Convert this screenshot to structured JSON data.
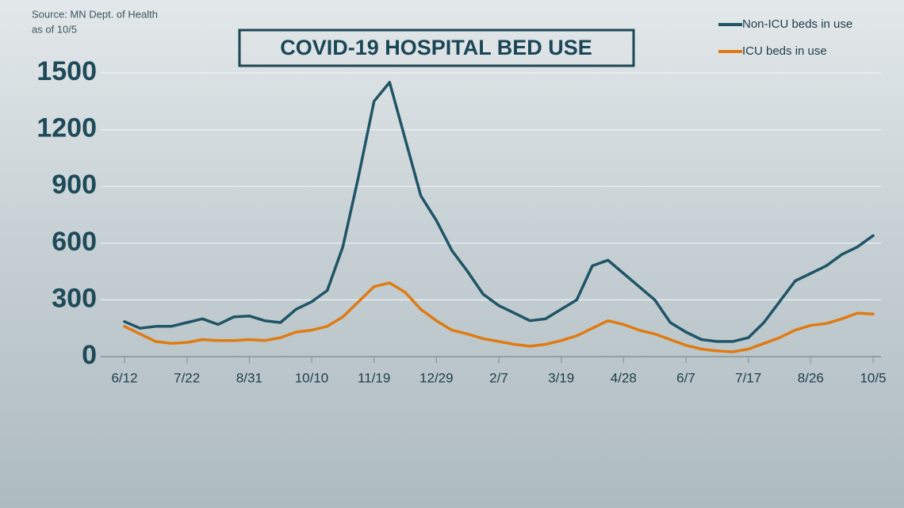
{
  "chart_data": {
    "type": "line",
    "title": "COVID-19 HOSPITAL BED USE",
    "source": "Source: MN Dept. of Health",
    "note": "as of 10/5",
    "categories": [
      "6/12",
      null,
      null,
      null,
      "7/22",
      null,
      null,
      null,
      "8/31",
      null,
      null,
      null,
      "10/10",
      null,
      null,
      null,
      "11/19",
      null,
      null,
      null,
      "12/29",
      null,
      null,
      null,
      "2/7",
      null,
      null,
      null,
      "3/19",
      null,
      null,
      null,
      "4/28",
      null,
      null,
      null,
      "6/7",
      null,
      null,
      null,
      "7/17",
      null,
      null,
      null,
      "8/26",
      null,
      null,
      null,
      "10/5"
    ],
    "series": [
      {
        "name": "Non-ICU beds in use",
        "color": "#1f5566",
        "values": [
          185,
          150,
          160,
          160,
          180,
          200,
          170,
          210,
          215,
          190,
          180,
          250,
          290,
          350,
          580,
          950,
          1350,
          1450,
          1150,
          850,
          720,
          560,
          450,
          330,
          270,
          230,
          190,
          200,
          250,
          300,
          480,
          510,
          440,
          370,
          300,
          180,
          130,
          90,
          80,
          80,
          100,
          180,
          290,
          400,
          440,
          480,
          540,
          580,
          640
        ]
      },
      {
        "name": "ICU beds in use",
        "color": "#e07b12",
        "values": [
          160,
          120,
          80,
          70,
          75,
          90,
          85,
          85,
          90,
          85,
          100,
          130,
          140,
          160,
          210,
          290,
          370,
          390,
          340,
          250,
          190,
          140,
          120,
          95,
          80,
          65,
          55,
          65,
          85,
          110,
          150,
          190,
          170,
          140,
          120,
          90,
          60,
          40,
          30,
          25,
          40,
          70,
          100,
          140,
          165,
          175,
          200,
          230,
          225
        ]
      }
    ],
    "ylim": [
      0,
      1500
    ],
    "yticks": [
      0,
      300,
      600,
      900,
      1200,
      1500
    ],
    "grid": true,
    "legend": "top-right"
  }
}
